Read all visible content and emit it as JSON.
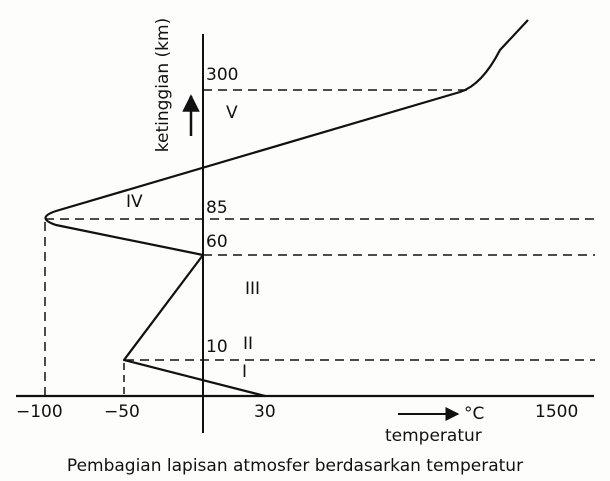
{
  "y_axis_label": "ketinggian (km)",
  "x_axis_label": "temperatur",
  "x_unit": "°C",
  "caption": "Pembagian lapisan atmosfer berdasarkan temperatur",
  "altitude_labels": {
    "a300": "300",
    "a85": "85",
    "a60": "60",
    "a10": "10"
  },
  "x_ticks": {
    "t_m100": "−100",
    "t_m50": "−50",
    "t_30": "30",
    "t_1500": "1500"
  },
  "layers": {
    "I": "I",
    "II": "II",
    "III": "III",
    "IV": "IV",
    "V": "V"
  }
}
